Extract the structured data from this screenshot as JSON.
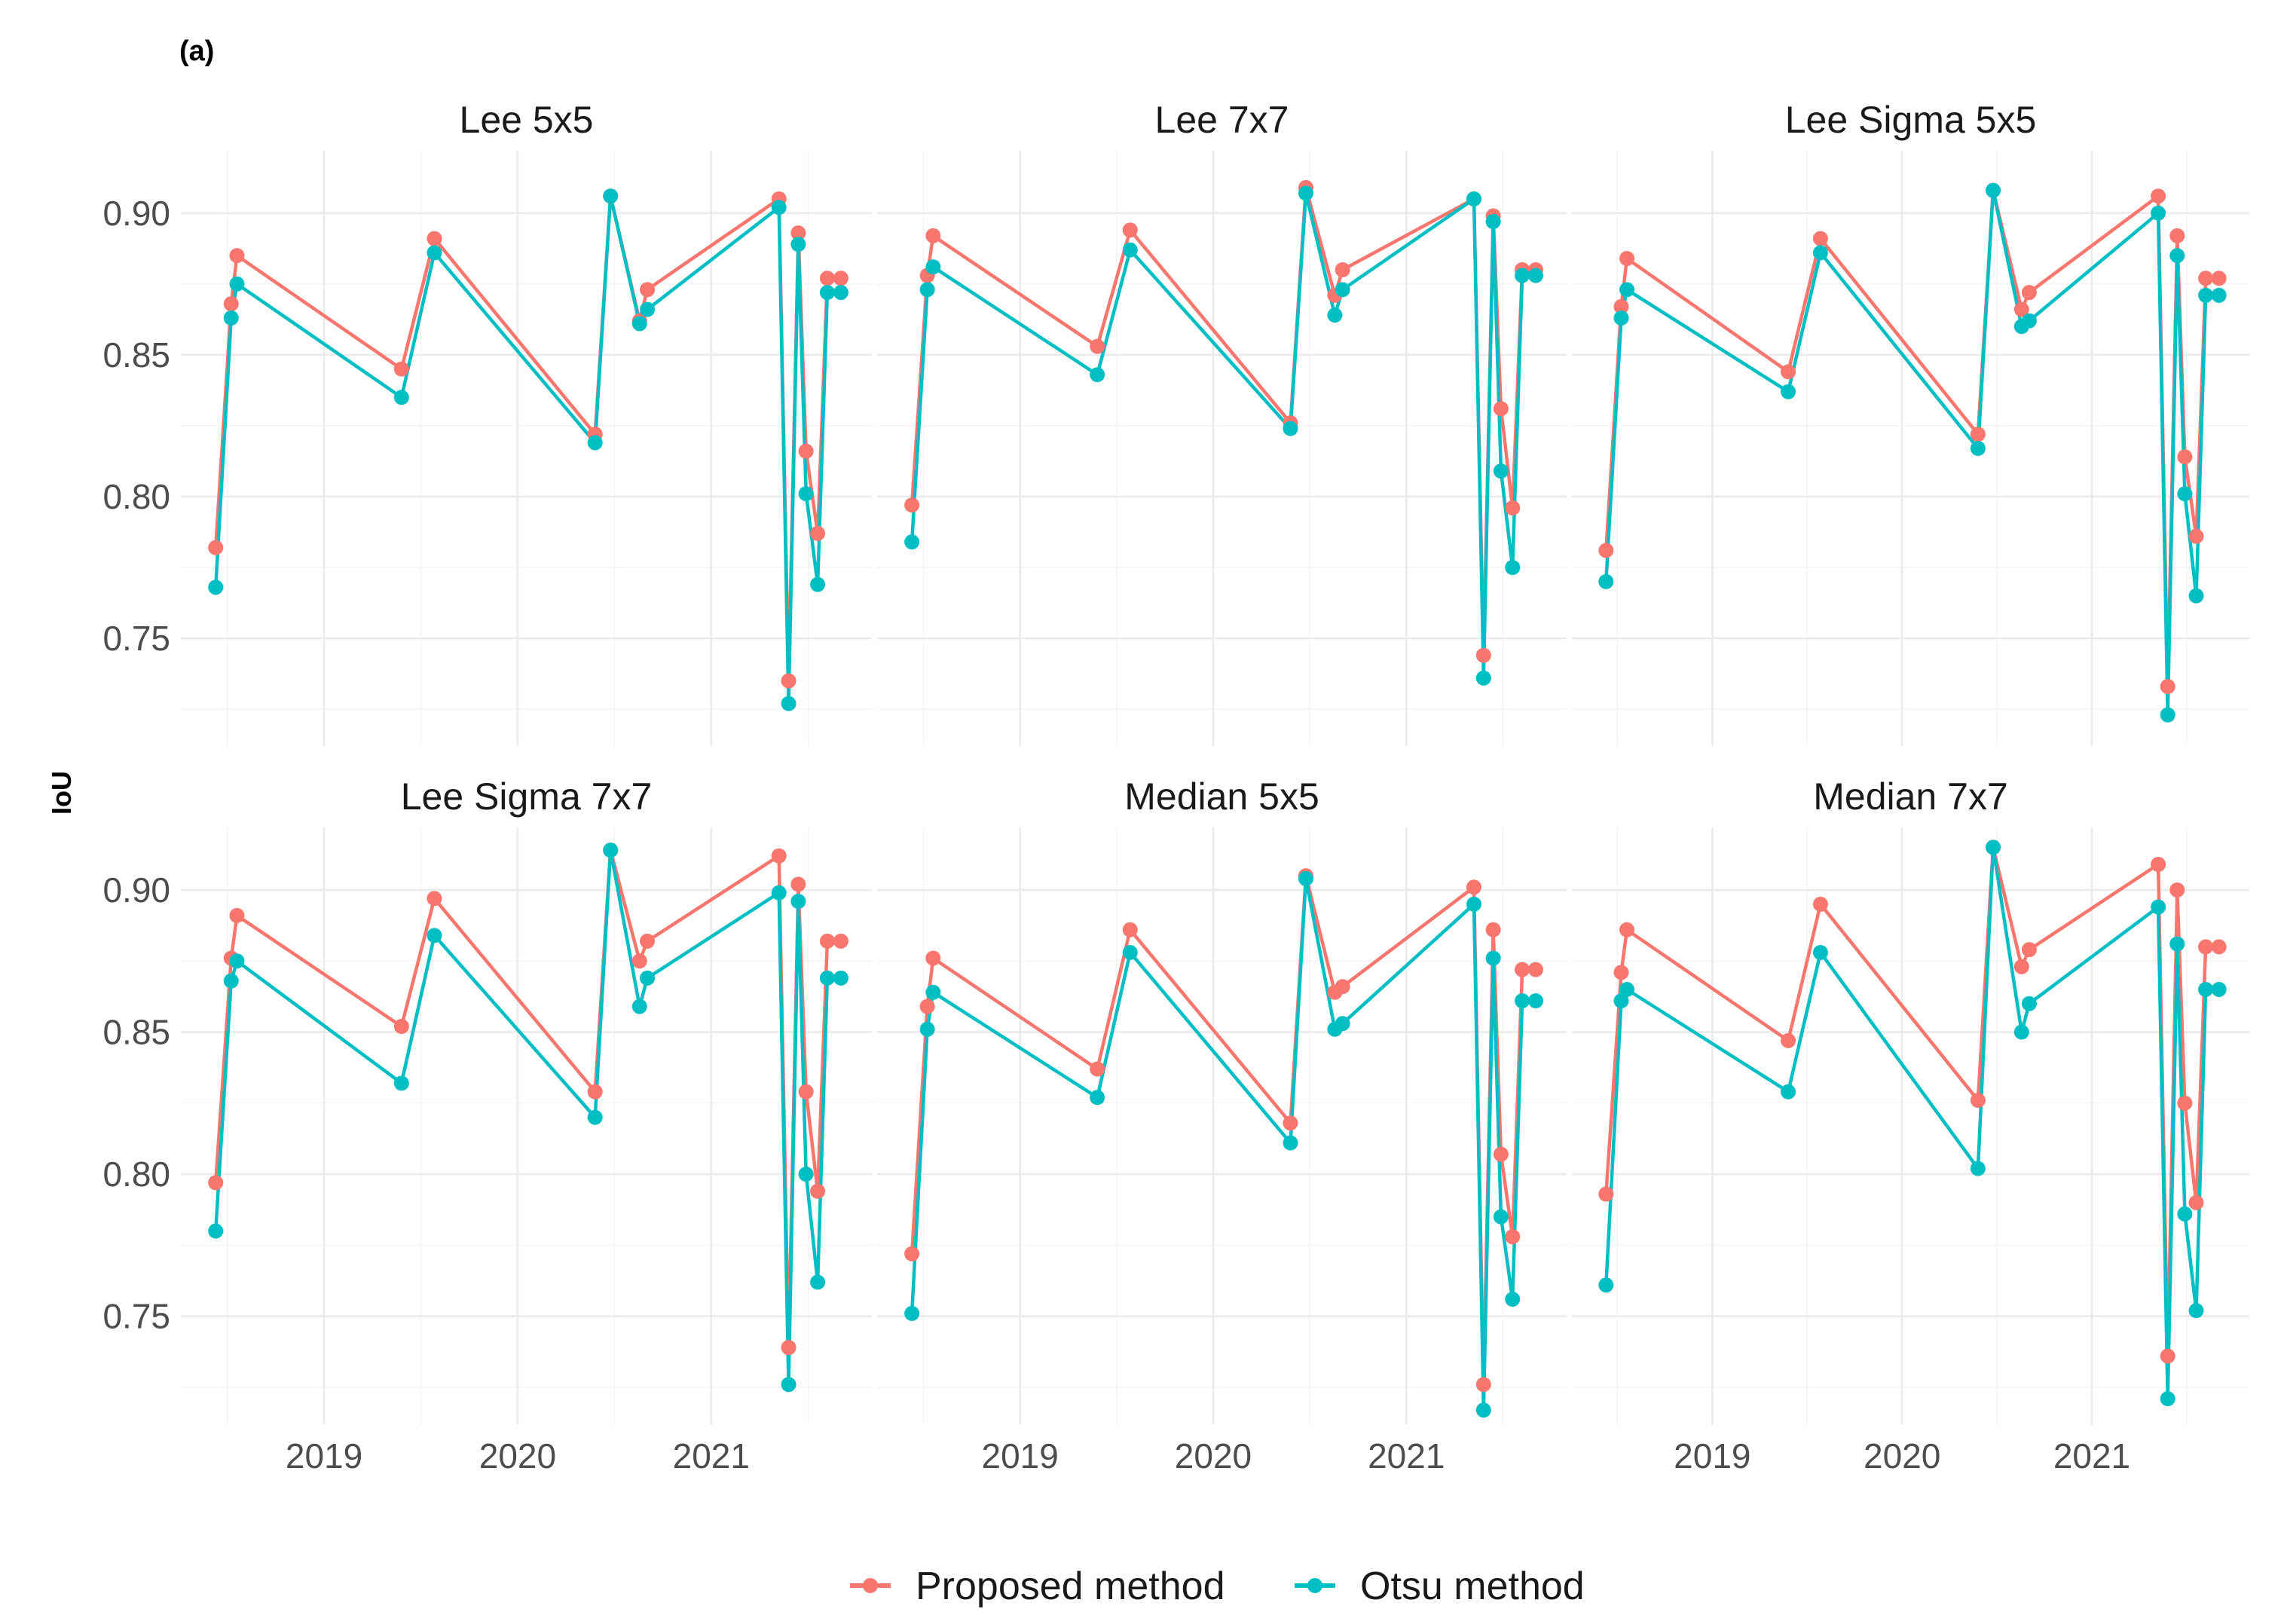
{
  "tag": "(a)",
  "ylabel": "IoU",
  "legend": {
    "items": [
      {
        "label": "Proposed method",
        "color": "#F8766D"
      },
      {
        "label": "Otsu method",
        "color": "#00BFC4"
      }
    ]
  },
  "chart_data": {
    "type": "line",
    "xlim": [
      2018.26,
      2021.83
    ],
    "ylim": [
      0.712,
      0.922
    ],
    "x_ticks": [
      2019,
      2020,
      2021
    ],
    "x_tick_labels": [
      "2019",
      "2020",
      "2021"
    ],
    "y_ticks": [
      0.75,
      0.8,
      0.85,
      0.9
    ],
    "y_tick_labels": [
      "0.75",
      "0.80",
      "0.85",
      "0.90"
    ],
    "x": [
      2018.44,
      2018.52,
      2018.55,
      2019.4,
      2019.57,
      2020.4,
      2020.48,
      2020.63,
      2020.67,
      2021.35,
      2021.4,
      2021.45,
      2021.49,
      2021.55,
      2021.6,
      2021.67
    ],
    "panels": [
      {
        "title": "Lee 5x5",
        "series": [
          {
            "name": "Proposed method",
            "values": [
              0.782,
              0.868,
              0.885,
              0.845,
              0.891,
              0.822,
              0.906,
              0.862,
              0.873,
              0.905,
              0.735,
              0.893,
              0.816,
              0.787,
              0.877,
              0.877
            ]
          },
          {
            "name": "Otsu method",
            "values": [
              0.768,
              0.863,
              0.875,
              0.835,
              0.886,
              0.819,
              0.906,
              0.861,
              0.866,
              0.902,
              0.727,
              0.889,
              0.801,
              0.769,
              0.872,
              0.872
            ]
          }
        ]
      },
      {
        "title": "Lee 7x7",
        "series": [
          {
            "name": "Proposed method",
            "values": [
              0.797,
              0.878,
              0.892,
              0.853,
              0.894,
              0.826,
              0.909,
              0.871,
              0.88,
              0.905,
              0.744,
              0.899,
              0.831,
              0.796,
              0.88,
              0.88
            ]
          },
          {
            "name": "Otsu method",
            "values": [
              0.784,
              0.873,
              0.881,
              0.843,
              0.887,
              0.824,
              0.907,
              0.864,
              0.873,
              0.905,
              0.736,
              0.897,
              0.809,
              0.775,
              0.878,
              0.878
            ]
          }
        ]
      },
      {
        "title": "Lee Sigma 5x5",
        "series": [
          {
            "name": "Proposed method",
            "values": [
              0.781,
              0.867,
              0.884,
              0.844,
              0.891,
              0.822,
              0.908,
              0.866,
              0.872,
              0.906,
              0.733,
              0.892,
              0.814,
              0.786,
              0.877,
              0.877
            ]
          },
          {
            "name": "Otsu method",
            "values": [
              0.77,
              0.863,
              0.873,
              0.837,
              0.886,
              0.817,
              0.908,
              0.86,
              0.862,
              0.9,
              0.723,
              0.885,
              0.801,
              0.765,
              0.871,
              0.871
            ]
          }
        ]
      },
      {
        "title": "Lee Sigma 7x7",
        "series": [
          {
            "name": "Proposed method",
            "values": [
              0.797,
              0.876,
              0.891,
              0.852,
              0.897,
              0.829,
              0.914,
              0.875,
              0.882,
              0.912,
              0.739,
              0.902,
              0.829,
              0.794,
              0.882,
              0.882
            ]
          },
          {
            "name": "Otsu method",
            "values": [
              0.78,
              0.868,
              0.875,
              0.832,
              0.884,
              0.82,
              0.914,
              0.859,
              0.869,
              0.899,
              0.726,
              0.896,
              0.8,
              0.762,
              0.869,
              0.869
            ]
          }
        ]
      },
      {
        "title": "Median 5x5",
        "series": [
          {
            "name": "Proposed method",
            "values": [
              0.772,
              0.859,
              0.876,
              0.837,
              0.886,
              0.818,
              0.905,
              0.864,
              0.866,
              0.901,
              0.726,
              0.886,
              0.807,
              0.778,
              0.872,
              0.872
            ]
          },
          {
            "name": "Otsu method",
            "values": [
              0.751,
              0.851,
              0.864,
              0.827,
              0.878,
              0.811,
              0.904,
              0.851,
              0.853,
              0.895,
              0.717,
              0.876,
              0.785,
              0.756,
              0.861,
              0.861
            ]
          }
        ]
      },
      {
        "title": "Median 7x7",
        "series": [
          {
            "name": "Proposed method",
            "values": [
              0.793,
              0.871,
              0.886,
              0.847,
              0.895,
              0.826,
              0.915,
              0.873,
              0.879,
              0.909,
              0.736,
              0.9,
              0.825,
              0.79,
              0.88,
              0.88
            ]
          },
          {
            "name": "Otsu method",
            "values": [
              0.761,
              0.861,
              0.865,
              0.829,
              0.878,
              0.802,
              0.915,
              0.85,
              0.86,
              0.894,
              0.721,
              0.881,
              0.786,
              0.752,
              0.865,
              0.865
            ]
          }
        ]
      }
    ]
  }
}
